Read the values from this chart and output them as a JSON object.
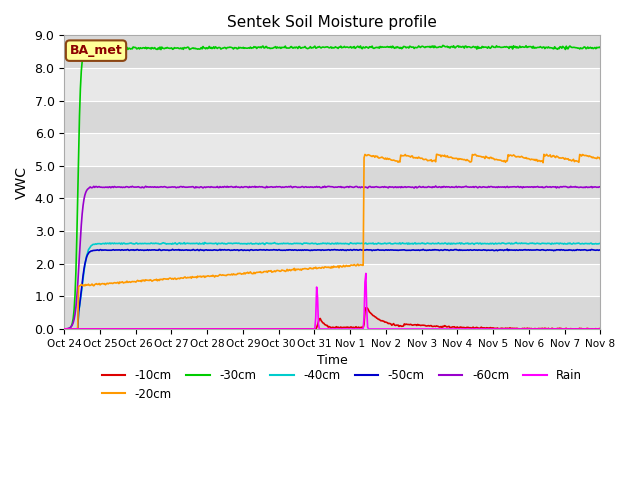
{
  "title": "Sentek Soil Moisture profile",
  "xlabel": "Time",
  "ylabel": "VWC",
  "ylim": [
    0,
    9.0
  ],
  "yticks": [
    0.0,
    1.0,
    2.0,
    3.0,
    4.0,
    5.0,
    6.0,
    7.0,
    8.0,
    9.0
  ],
  "station_label": "BA_met",
  "colors": {
    "-10cm": "#dd0000",
    "-20cm": "#ff9900",
    "-30cm": "#00cc00",
    "-40cm": "#00cccc",
    "-50cm": "#0000cc",
    "-60cm": "#9900cc",
    "Rain": "#ff00ff"
  },
  "x_tick_labels": [
    "Oct 24",
    "Oct 25",
    "Oct 26",
    "Oct 27",
    "Oct 28",
    "Oct 29",
    "Oct 30",
    "Oct 31",
    "Nov 1",
    "Nov 2",
    "Nov 3",
    "Nov 4",
    "Nov 5",
    "Nov 6",
    "Nov 7",
    "Nov 8"
  ],
  "band_colors": [
    "#d8d8d8",
    "#e8e8e8"
  ],
  "n_points": 600,
  "date_start": 0,
  "date_end": 15
}
